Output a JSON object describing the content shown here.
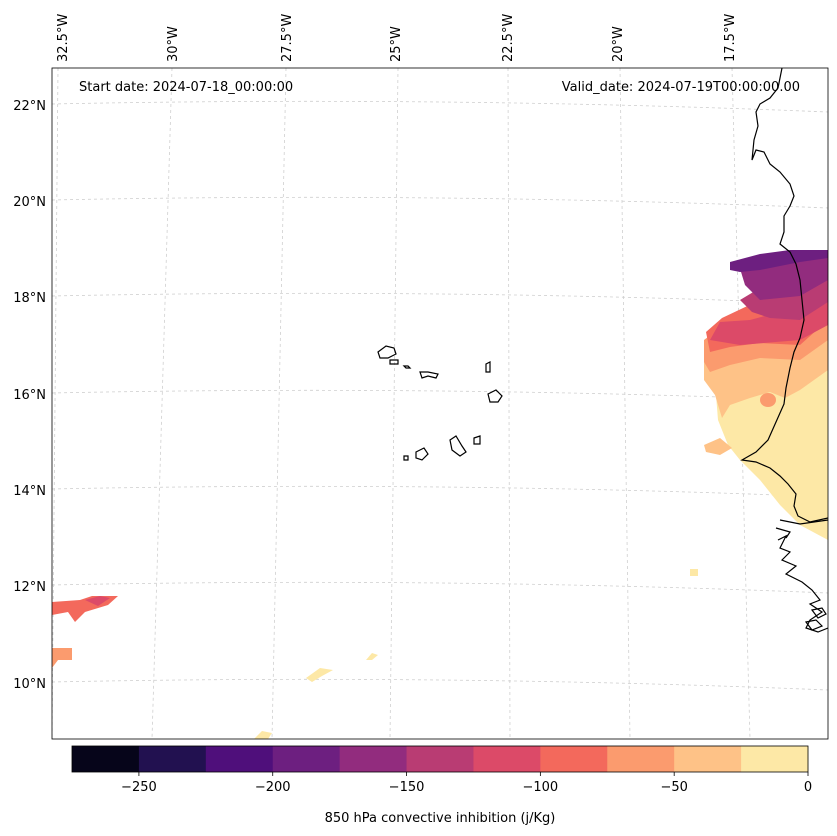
{
  "map": {
    "start_date_text": "Start date: 2024-07-18_00:00:00",
    "valid_date_text": "Valid_date: 2024-07-19T00:00:00.00",
    "lon_labels": [
      "32.5°W",
      "30°W",
      "27.5°W",
      "25°W",
      "22.5°W",
      "20°W",
      "17.5°W"
    ],
    "lat_labels": [
      "22°N",
      "20°N",
      "18°N",
      "16°N",
      "14°N",
      "12°N",
      "10°N"
    ],
    "field_colors": {
      "0_25": "#fde8a6",
      "25_50": "#fec287",
      "50_75": "#fb9b6e",
      "75_100": "#f3695c",
      "100_125": "#dc4a68",
      "125_150": "#b93c73",
      "150_175": "#922c7e",
      "175_200": "#6d1f80"
    }
  },
  "colorbar": {
    "label": "850 hPa convective inhibition (j/Kg)",
    "ticks": [
      "−250",
      "−200",
      "−150",
      "−100",
      "−50",
      "0"
    ],
    "colors": [
      "#06051a",
      "#221150",
      "#4f0f7b",
      "#6d1f80",
      "#922c7e",
      "#b93c73",
      "#dc4a68",
      "#f3695c",
      "#fb9b6e",
      "#fec287",
      "#fde8a6"
    ]
  }
}
